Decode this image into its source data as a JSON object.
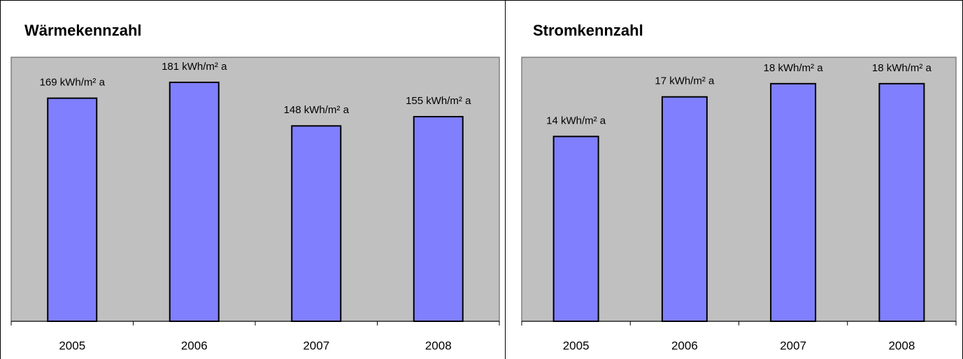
{
  "chart_data": [
    {
      "type": "bar",
      "title": "Wärmekennzahl",
      "categories": [
        "2005",
        "2006",
        "2007",
        "2008"
      ],
      "values": [
        169,
        181,
        148,
        155
      ],
      "value_labels": [
        "169 kWh/m² a",
        "181 kWh/m² a",
        "148 kWh/m² a",
        "155 kWh/m² a"
      ],
      "color": "#8080ff",
      "ylim": [
        0,
        200
      ]
    },
    {
      "type": "bar",
      "title": "Stromkennzahl",
      "categories": [
        "2005",
        "2006",
        "2007",
        "2008"
      ],
      "values": [
        14,
        17,
        18,
        18
      ],
      "value_labels": [
        "14 kWh/m² a",
        "17 kWh/m² a",
        "18 kWh/m² a",
        "18 kWh/m² a"
      ],
      "color": "#8080ff",
      "ylim": [
        0,
        20
      ]
    }
  ]
}
